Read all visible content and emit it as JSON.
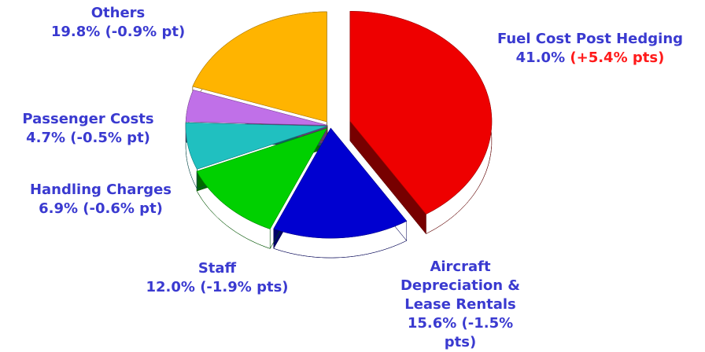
{
  "chart_data": {
    "type": "pie",
    "categories": [
      "Fuel Cost Post Hedging",
      "Aircraft Depreciation & Lease Rentals",
      "Staff",
      "Handling Charges",
      "Passenger Costs",
      "Others"
    ],
    "values": [
      41.0,
      15.6,
      12.0,
      6.9,
      4.7,
      19.8
    ],
    "value_labels": [
      "41.0%",
      "15.6%",
      "12.0%",
      "6.9%",
      "4.7%",
      "19.8%"
    ],
    "changes": [
      5.4,
      -1.5,
      -1.9,
      -0.6,
      -0.5,
      -0.9
    ],
    "change_labels": [
      "(+5.4% pts)",
      "(-1.5% pts)",
      "(-1.9% pts)",
      "(-0.6% pt)",
      "(-0.5% pt)",
      "(-0.9% pt)"
    ],
    "colors": [
      "#ee0000",
      "#0000d0",
      "#00d000",
      "#20c0c0",
      "#c070e8",
      "#ffb400"
    ]
  }
}
